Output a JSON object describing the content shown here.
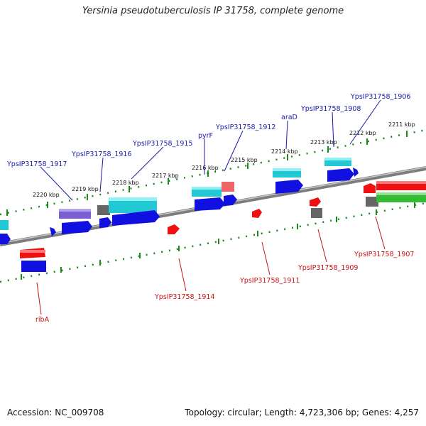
{
  "header": {
    "title": "Yersinia pseudotuberculosis IP 31758, complete genome"
  },
  "footer": {
    "accession": "Accession: NC_009708",
    "topology": "Topology: circular; Length: 4,723,306 bp; Genes: 4,257"
  },
  "ticks": [
    "2211 kbp",
    "2212 kbp",
    "2213 kbp",
    "2214 kbp",
    "2215 kbp",
    "2216 kbp",
    "2217 kbp",
    "2218 kbp",
    "2219 kbp",
    "2220 kbp"
  ],
  "labels_top": [
    "YpsIP31758_1906",
    "YpsIP31758_1908",
    "araD",
    "YpsIP31758_1912",
    "pyrF",
    "YpsIP31758_1915",
    "YpsIP31758_1916",
    "YpsIP31758_1917"
  ],
  "labels_bottom": [
    "YpsIP31758_1907",
    "YpsIP31758_1909",
    "YpsIP31758_1911",
    "YpsIP31758_1914",
    "ribA"
  ],
  "colors": {
    "forward": "#1010e0",
    "forward_feature": "#22c8d4",
    "reverse": "#ee1111",
    "other": "#666666",
    "misc": "#7a5fd0",
    "reverse_feature": "#33bb33",
    "label_top": "#1a1aa8",
    "label_bottom": "#cc1111",
    "tick": "#1a8a1a"
  }
}
